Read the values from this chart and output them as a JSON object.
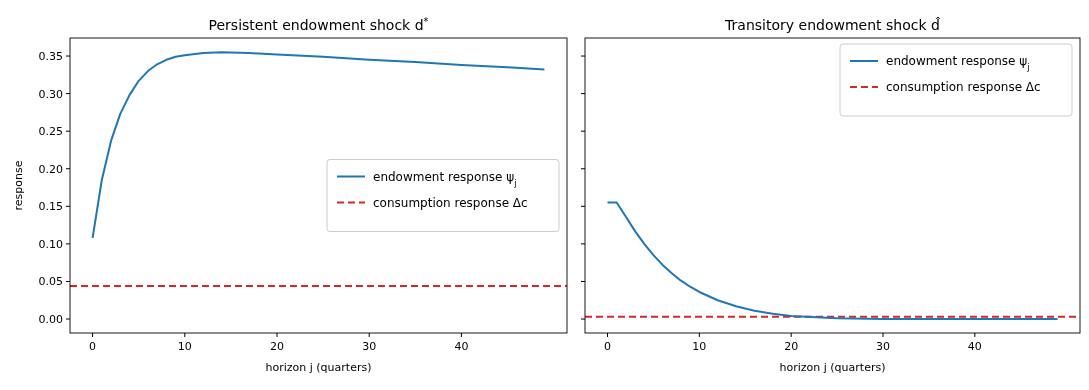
{
  "chart_data": [
    {
      "type": "line",
      "title": "Persistent endowment shock d$^{*}$",
      "xlabel": "horizon j (quarters)",
      "ylabel": "response",
      "x": [
        0,
        1,
        2,
        3,
        4,
        5,
        6,
        7,
        8,
        9,
        10,
        12,
        14,
        17,
        20,
        25,
        30,
        35,
        40,
        45,
        49
      ],
      "series": [
        {
          "name": "endowment response ψ$_{j}$",
          "color": "#1f77b4",
          "values": [
            0.108,
            0.185,
            0.237,
            0.273,
            0.298,
            0.317,
            0.33,
            0.339,
            0.345,
            0.349,
            0.351,
            0.354,
            0.355,
            0.354,
            0.352,
            0.349,
            0.345,
            0.342,
            0.338,
            0.335,
            0.332
          ]
        }
      ],
      "ref_lines": [
        {
          "axis": "y",
          "value": 0.044,
          "label": "consumption response Δc",
          "color": "#d62728",
          "line_style": "dashed"
        }
      ],
      "xlim": [
        -2.45,
        51.45
      ],
      "ylim": [
        -0.0186,
        0.374
      ],
      "xticks": [
        0,
        10,
        20,
        30,
        40
      ],
      "yticks": [
        {
          "value": 0,
          "label": "0.00"
        },
        0.05,
        {
          "value": 0.1,
          "label": "0.10"
        },
        0.15,
        {
          "value": 0.2,
          "label": "0.20"
        },
        0.25,
        {
          "value": 0.3,
          "label": "0.30"
        },
        0.35
      ],
      "legend": "right",
      "grid": false
    },
    {
      "type": "line",
      "title": "Transitory endowment shock d̂",
      "xlabel": "horizon j (quarters)",
      "x": [
        0,
        1,
        2,
        3,
        4,
        5,
        6,
        7,
        8,
        9,
        10,
        12,
        14,
        16,
        18,
        20,
        25,
        30,
        40,
        49
      ],
      "series": [
        {
          "name": "endowment response ψ$_{j}$",
          "color": "#1f77b4",
          "values": [
            0.155,
            0.155,
            0.136,
            0.117,
            0.1,
            0.085,
            0.072,
            0.061,
            0.051,
            0.043,
            0.036,
            0.025,
            0.017,
            0.011,
            0.007,
            0.004,
            0.001,
            0,
            0,
            0
          ]
        }
      ],
      "ref_lines": [
        {
          "axis": "y",
          "value": 0.003,
          "label": "consumption response Δc",
          "color": "#d62728",
          "line_style": "dashed"
        }
      ],
      "xlim": [
        -2.45,
        51.45
      ],
      "ylim": [
        -0.0186,
        0.374
      ],
      "xticks": [
        0,
        10,
        20,
        30,
        40
      ],
      "yticks": [
        0,
        0.05,
        0.1,
        0.15,
        0.2,
        0.25,
        0.3,
        0.35
      ],
      "tick_labels": "x",
      "legend": "top right",
      "grid": false
    }
  ]
}
